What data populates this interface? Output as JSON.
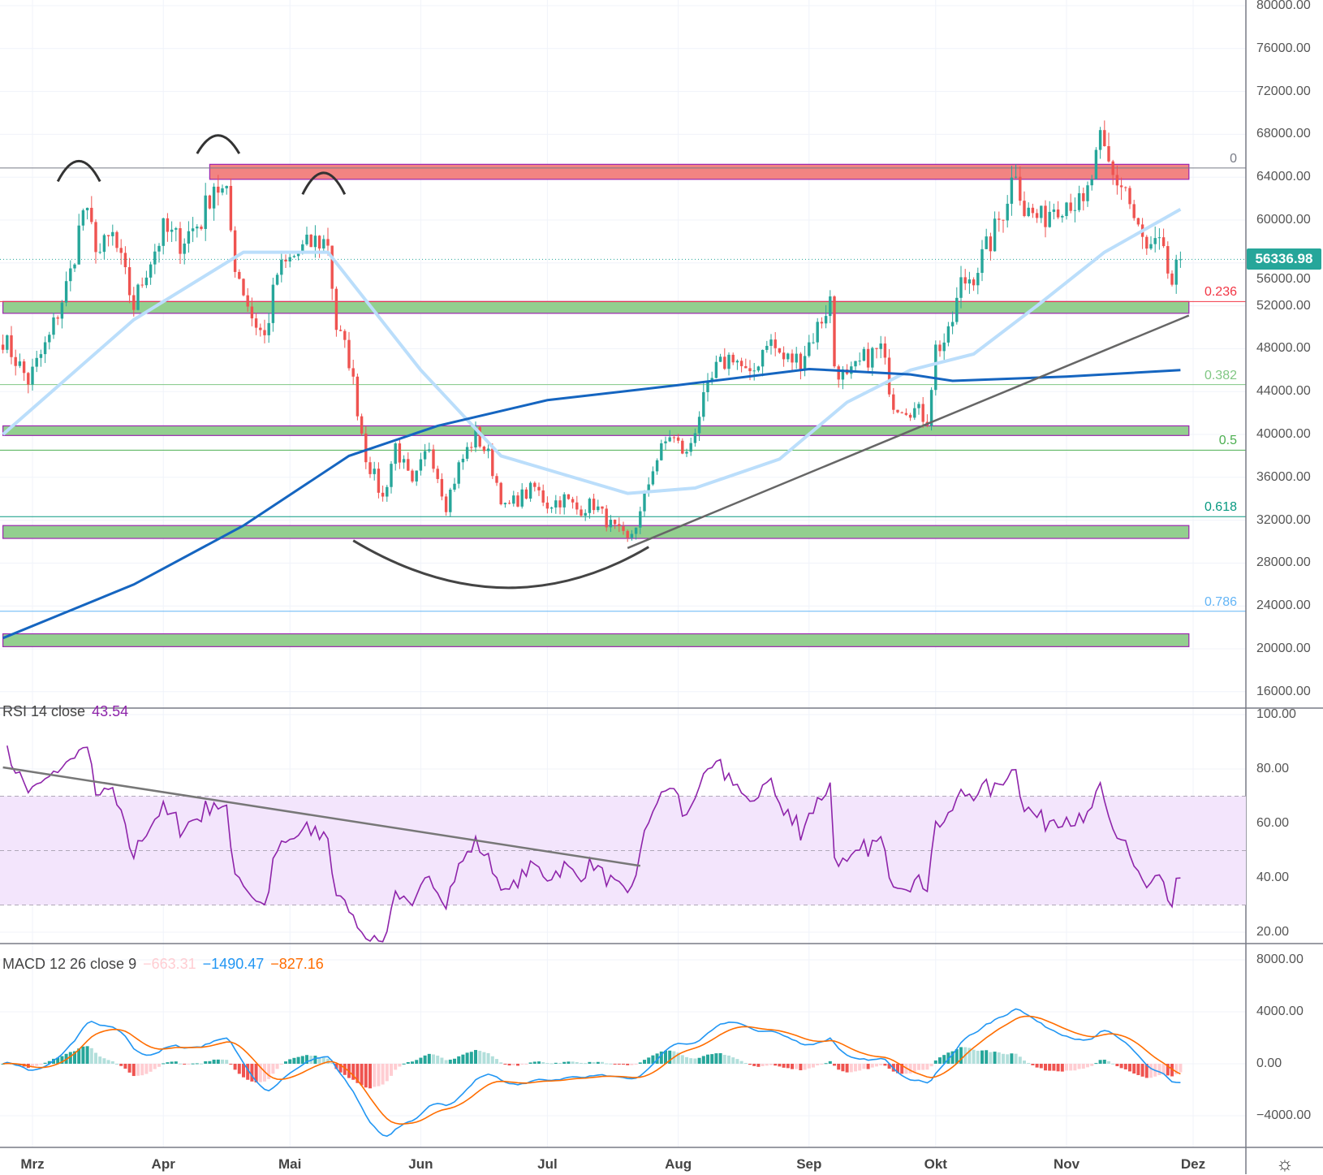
{
  "chart_data": [
    {
      "type": "candlestick",
      "pane": "price",
      "ylim": [
        16000,
        80000
      ],
      "y_ticks": [
        "80000.00",
        "76000.00",
        "72000.00",
        "68000.00",
        "64000.00",
        "60000.00",
        "56000.00",
        "52000.00",
        "48000.00",
        "44000.00",
        "40000.00",
        "36000.00",
        "32000.00",
        "28000.00",
        "24000.00",
        "20000.00",
        "16000.00"
      ],
      "last_price": "56336.98",
      "x": [
        "02-22",
        "02-28",
        "03-05",
        "03-10",
        "03-13",
        "03-17",
        "03-20",
        "03-25",
        "03-28",
        "04-01",
        "04-05",
        "04-10",
        "04-13",
        "04-16",
        "04-18",
        "04-22",
        "04-25",
        "04-28",
        "05-03",
        "05-07",
        "05-10",
        "05-12",
        "05-15",
        "05-19",
        "05-23",
        "05-26",
        "05-30",
        "06-03",
        "06-07",
        "06-10",
        "06-14",
        "06-17",
        "06-21",
        "06-24",
        "06-28",
        "07-01",
        "07-05",
        "07-08",
        "07-12",
        "07-16",
        "07-20",
        "07-23",
        "07-26",
        "07-30",
        "08-03",
        "08-06",
        "08-10",
        "08-14",
        "08-18",
        "08-22",
        "08-26",
        "08-30",
        "09-03",
        "09-06",
        "09-07",
        "09-10",
        "09-14",
        "09-18",
        "09-21",
        "09-25",
        "09-29",
        "10-01",
        "10-04",
        "10-07",
        "10-10",
        "10-14",
        "10-17",
        "10-20",
        "10-22",
        "10-26",
        "10-29",
        "11-02",
        "11-05",
        "11-09",
        "11-12",
        "11-15",
        "11-17",
        "11-20",
        "11-23",
        "11-26",
        "11-28"
      ],
      "close": [
        49000,
        45000,
        49000,
        55000,
        61000,
        57000,
        58500,
        52000,
        55500,
        59000,
        58000,
        60000,
        63500,
        62000,
        56000,
        51000,
        49000,
        55000,
        57000,
        58000,
        58000,
        50000,
        47000,
        38000,
        34000,
        39000,
        35000,
        39000,
        33500,
        37000,
        40000,
        38000,
        33000,
        34000,
        35000,
        33500,
        34000,
        33000,
        33500,
        31500,
        30000,
        32500,
        37000,
        40000,
        38000,
        42000,
        46000,
        47500,
        45000,
        49000,
        47000,
        47000,
        50000,
        52500,
        46500,
        45000,
        47000,
        48000,
        43000,
        42500,
        41500,
        48000,
        49000,
        54000,
        55000,
        58000,
        61000,
        65000,
        61000,
        60000,
        61500,
        62000,
        61000,
        67000,
        64000,
        63000,
        60000,
        57000,
        57500,
        54000,
        56336.98
      ],
      "ma_fast": {
        "x": [
          "02-22",
          "03-25",
          "04-20",
          "05-10",
          "06-01",
          "06-20",
          "07-20",
          "08-05",
          "08-25",
          "09-10",
          "09-25",
          "10-10",
          "10-25",
          "11-10",
          "11-28"
        ],
        "y": [
          40000,
          50700,
          57000,
          57000,
          46000,
          38000,
          34500,
          35000,
          37700,
          43000,
          46000,
          47500,
          52000,
          57000,
          61000
        ],
        "color": "#bbdefb"
      },
      "ma_slow": {
        "x": [
          "02-22",
          "03-25",
          "04-20",
          "05-15",
          "06-05",
          "07-01",
          "08-01",
          "09-01",
          "09-25",
          "10-05",
          "11-01",
          "11-28"
        ],
        "y": [
          21000,
          26000,
          31500,
          38000,
          40800,
          43200,
          44600,
          46100,
          45600,
          45000,
          45400,
          46000
        ],
        "color": "#1565c0"
      },
      "fib_levels": [
        {
          "label": "0",
          "value": 64854,
          "color": "#787b86"
        },
        {
          "label": "0.236",
          "value": 52400,
          "color": "#f23645"
        },
        {
          "label": "0.382",
          "value": 44650,
          "color": "#81c784"
        },
        {
          "label": "0.5",
          "value": 38530,
          "color": "#4caf50"
        },
        {
          "label": "0.618",
          "value": 32330,
          "color": "#089981"
        },
        {
          "label": "0.786",
          "value": 23500,
          "color": "#64b5f6"
        }
      ],
      "zones": [
        {
          "from": "04-12",
          "to": "11-30",
          "low": 63800,
          "high": 65200,
          "color": "#f28482"
        },
        {
          "from": "02-22",
          "to": "11-30",
          "low": 51300,
          "high": 52400,
          "color": "#93cf8f"
        },
        {
          "from": "02-22",
          "to": "11-30",
          "low": 39900,
          "high": 40800,
          "color": "#93cf8f"
        },
        {
          "from": "02-22",
          "to": "11-30",
          "low": 30300,
          "high": 31500,
          "color": "#93cf8f"
        },
        {
          "from": "02-22",
          "to": "11-30",
          "low": 20200,
          "high": 21400,
          "color": "#93cf8f"
        }
      ],
      "trendline": {
        "x": [
          "07-20",
          "11-30"
        ],
        "y": [
          29400,
          51100
        ]
      },
      "arcs": [
        {
          "center": "03-12",
          "base": 63600,
          "top": 65500
        },
        {
          "center": "04-14",
          "base": 66200,
          "top": 67900
        },
        {
          "center": "05-09",
          "base": 62400,
          "top": 64400
        }
      ],
      "bowl": {
        "x": [
          "05-16",
          "06-21",
          "07-25"
        ],
        "y": [
          30100,
          25700,
          29500
        ]
      },
      "colors": {
        "up": "#26a69a",
        "down": "#ef5350"
      }
    },
    {
      "type": "line",
      "pane": "rsi",
      "title": "RSI 14 close",
      "value": "43.54",
      "ylim": [
        20,
        100
      ],
      "y_ticks": [
        "100.00",
        "80.00",
        "60.00",
        "40.00",
        "20.00"
      ],
      "band": [
        30,
        70
      ],
      "trendline": {
        "x": [
          "02-22",
          "07-23"
        ],
        "y": [
          80.6,
          44.4
        ]
      },
      "color": "#8e24aa"
    },
    {
      "type": "bar+line",
      "pane": "macd",
      "title": "MACD 12 26 close 9",
      "values": [
        {
          "text": "−663.31",
          "color": "#ffcdd2"
        },
        {
          "text": "−1490.47",
          "color": "#2196f3"
        },
        {
          "text": "−827.16",
          "color": "#ff6d00"
        }
      ],
      "y_ticks": [
        "8000.00",
        "4000.00",
        "0.00",
        "−4000.00"
      ]
    }
  ],
  "x_axis": {
    "labels": [
      {
        "text": "Mrz",
        "date": "03-01"
      },
      {
        "text": "Apr",
        "date": "04-01"
      },
      {
        "text": "Mai",
        "date": "05-01"
      },
      {
        "text": "Jun",
        "date": "06-01"
      },
      {
        "text": "Jul",
        "date": "07-01"
      },
      {
        "text": "Aug",
        "date": "08-01"
      },
      {
        "text": "Sep",
        "date": "09-01"
      },
      {
        "text": "Okt",
        "date": "10-01"
      },
      {
        "text": "Nov",
        "date": "11-01"
      },
      {
        "text": "Dez",
        "date": "12-01"
      }
    ]
  },
  "settings_icon": "sun-gear-icon"
}
